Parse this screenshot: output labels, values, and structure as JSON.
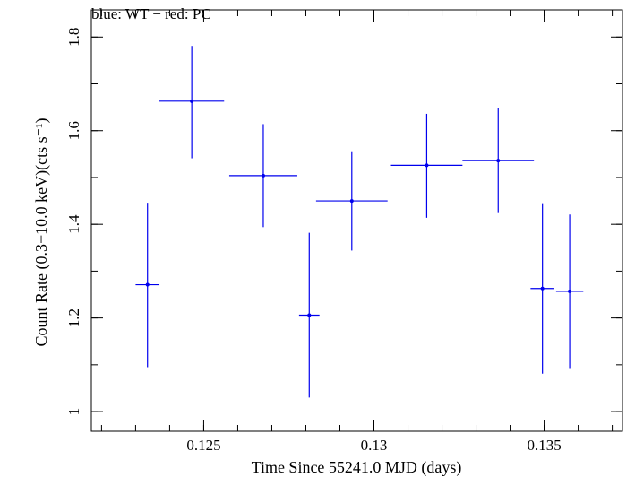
{
  "chart_data": {
    "type": "scatter",
    "title": "blue: WT − red: PC",
    "xlabel": "Time Since 55241.0 MJD (days)",
    "ylabel": "Count Rate (0.3−10.0 keV)(cts s⁻¹)",
    "xlim": [
      0.1217,
      0.1373
    ],
    "ylim": [
      0.958,
      1.858
    ],
    "x_ticks": [
      {
        "value": 0.125,
        "label": "0.125"
      },
      {
        "value": 0.13,
        "label": "0.13"
      },
      {
        "value": 0.135,
        "label": "0.135"
      }
    ],
    "y_ticks": [
      {
        "value": 1.0,
        "label": "1"
      },
      {
        "value": 1.2,
        "label": "1.2"
      },
      {
        "value": 1.4,
        "label": "1.4"
      },
      {
        "value": 1.6,
        "label": "1.6"
      },
      {
        "value": 1.8,
        "label": "1.8"
      }
    ],
    "x_minor_step": 0.001,
    "y_minor_step": 0.1,
    "grid": false,
    "colors": {
      "WT": "#0000ee",
      "PC": "#ee0000"
    },
    "series": [
      {
        "name": "WT",
        "points": [
          {
            "x": 0.12335,
            "xerr_lo": 0.00035,
            "xerr_hi": 0.00035,
            "y": 1.271,
            "yerr_lo": 0.176,
            "yerr_hi": 0.175
          },
          {
            "x": 0.12465,
            "xerr_lo": 0.00095,
            "xerr_hi": 0.00095,
            "y": 1.663,
            "yerr_lo": 0.122,
            "yerr_hi": 0.118
          },
          {
            "x": 0.12675,
            "xerr_lo": 0.001,
            "xerr_hi": 0.001,
            "y": 1.504,
            "yerr_lo": 0.11,
            "yerr_hi": 0.11
          },
          {
            "x": 0.1281,
            "xerr_lo": 0.0003,
            "xerr_hi": 0.0003,
            "y": 1.206,
            "yerr_lo": 0.176,
            "yerr_hi": 0.176
          },
          {
            "x": 0.12935,
            "xerr_lo": 0.00105,
            "xerr_hi": 0.00105,
            "y": 1.45,
            "yerr_lo": 0.106,
            "yerr_hi": 0.106
          },
          {
            "x": 0.13155,
            "xerr_lo": 0.00105,
            "xerr_hi": 0.00105,
            "y": 1.526,
            "yerr_lo": 0.112,
            "yerr_hi": 0.11
          },
          {
            "x": 0.13365,
            "xerr_lo": 0.00105,
            "xerr_hi": 0.00105,
            "y": 1.536,
            "yerr_lo": 0.112,
            "yerr_hi": 0.112
          },
          {
            "x": 0.13495,
            "xerr_lo": 0.00035,
            "xerr_hi": 0.00035,
            "y": 1.263,
            "yerr_lo": 0.182,
            "yerr_hi": 0.182
          },
          {
            "x": 0.13575,
            "xerr_lo": 0.0004,
            "xerr_hi": 0.0004,
            "y": 1.257,
            "yerr_lo": 0.164,
            "yerr_hi": 0.164
          }
        ]
      }
    ]
  }
}
